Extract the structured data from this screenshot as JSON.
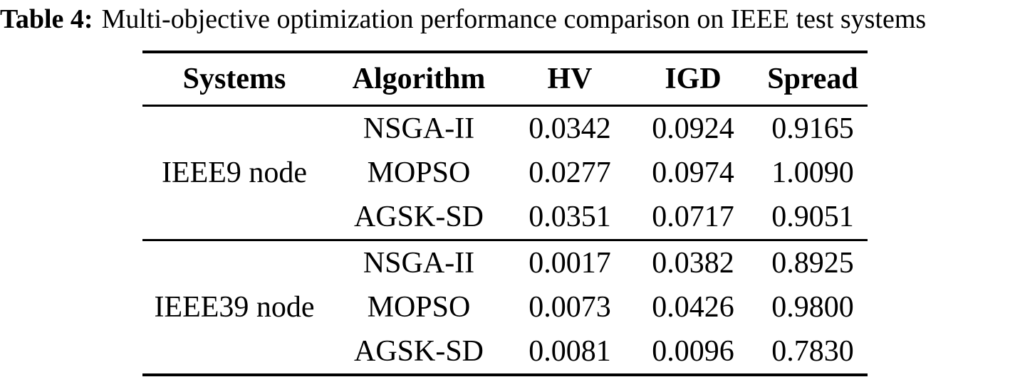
{
  "caption": {
    "label": "Table 4:",
    "text": "Multi-objective optimization performance comparison on IEEE test systems"
  },
  "colors": {
    "background": "#ffffff",
    "text": "#000000",
    "rule": "#000000"
  },
  "table": {
    "columns": [
      "Systems",
      "Algorithm",
      "HV",
      "IGD",
      "Spread"
    ],
    "groups": [
      {
        "system": "IEEE9 node",
        "rows": [
          {
            "algorithm": "NSGA-II",
            "hv": "0.0342",
            "igd": "0.0924",
            "spread": "0.9165"
          },
          {
            "algorithm": "MOPSO",
            "hv": "0.0277",
            "igd": "0.0974",
            "spread": "1.0090"
          },
          {
            "algorithm": "AGSK-SD",
            "hv": "0.0351",
            "igd": "0.0717",
            "spread": "0.9051"
          }
        ]
      },
      {
        "system": "IEEE39 node",
        "rows": [
          {
            "algorithm": "NSGA-II",
            "hv": "0.0017",
            "igd": "0.0382",
            "spread": "0.8925"
          },
          {
            "algorithm": "MOPSO",
            "hv": "0.0073",
            "igd": "0.0426",
            "spread": "0.9800"
          },
          {
            "algorithm": "AGSK-SD",
            "hv": "0.0081",
            "igd": "0.0096",
            "spread": "0.7830"
          }
        ]
      }
    ]
  }
}
